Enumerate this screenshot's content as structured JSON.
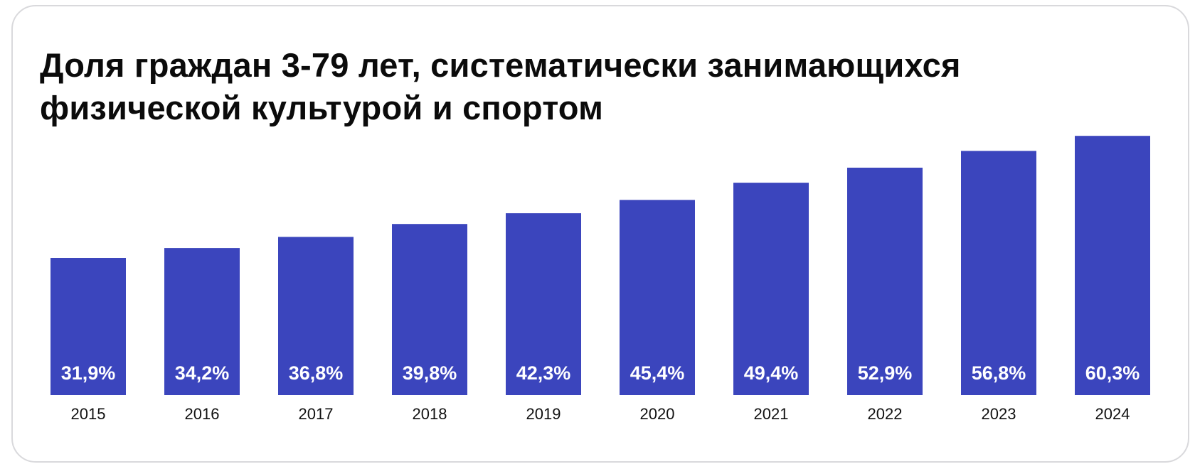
{
  "colors": {
    "bar": "#3b45bd",
    "label": "#ffffff",
    "axis_text": "#111111",
    "card_border": "#d9d9dc"
  },
  "chart_data": {
    "type": "bar",
    "title": "Доля граждан 3-79 лет, систематически занимающихся физической культурой и спортом",
    "categories": [
      "2015",
      "2016",
      "2017",
      "2018",
      "2019",
      "2020",
      "2021",
      "2022",
      "2023",
      "2024"
    ],
    "values": [
      31.9,
      34.2,
      36.8,
      39.8,
      42.3,
      45.4,
      49.4,
      52.9,
      56.8,
      60.3
    ],
    "value_labels": [
      "31,9%",
      "34,2%",
      "36,8%",
      "39,8%",
      "42,3%",
      "45,4%",
      "49,4%",
      "52,9%",
      "56,8%",
      "60,3%"
    ],
    "xlabel": "",
    "ylabel": "",
    "ylim": [
      0,
      60.3
    ],
    "grid": false,
    "legend": "none"
  }
}
